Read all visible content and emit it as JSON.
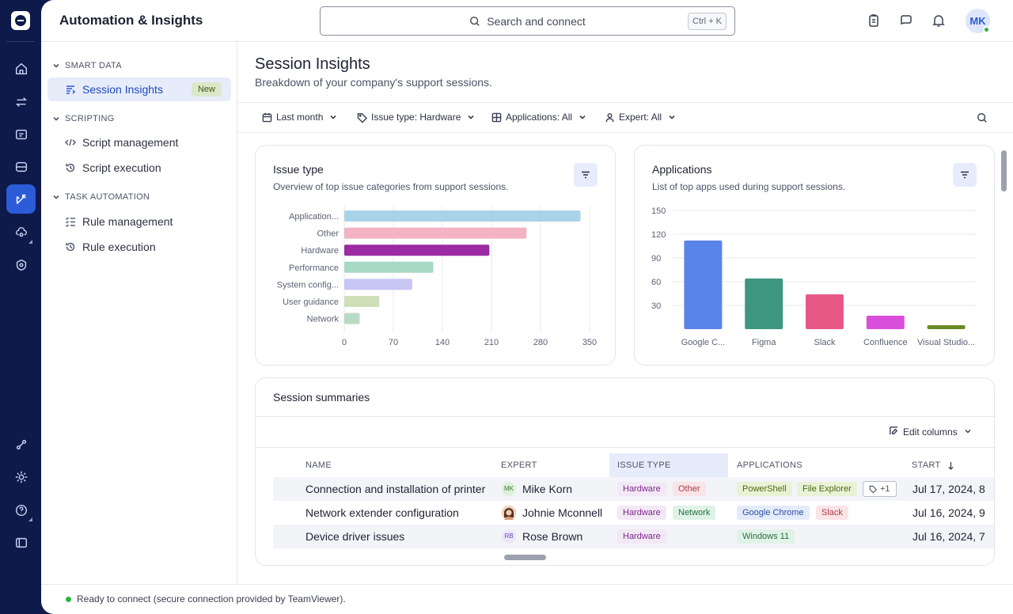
{
  "app": {
    "title": "Automation & Insights"
  },
  "search": {
    "placeholder": "Search and connect",
    "shortcut": "Ctrl + K"
  },
  "user": {
    "initials": "MK",
    "status_color": "#2fb344"
  },
  "rail": {
    "items": [
      "home-icon",
      "transfer-icon",
      "devices-icon",
      "sessions-icon",
      "automation-icon",
      "cloud-settings-icon",
      "security-icon",
      "integrations-icon",
      "settings-icon",
      "help-icon",
      "panel-icon"
    ],
    "active": "automation-icon"
  },
  "sidebar": {
    "smart_data": "SMART DATA",
    "session_insights": "Session Insights",
    "new_badge": "New",
    "scripting": "SCRIPTING",
    "script_management": "Script management",
    "script_execution": "Script execution",
    "task_automation": "TASK AUTOMATION",
    "rule_management": "Rule management",
    "rule_execution": "Rule execution"
  },
  "page": {
    "title": "Session Insights",
    "subtitle": "Breakdown of your company's support sessions."
  },
  "filters": {
    "period": "Last month",
    "issue_type": "Issue type: Hardware",
    "applications": "Applications: All",
    "expert": "Expert: All"
  },
  "issue_card": {
    "title": "Issue type",
    "subtitle": "Overview of top issue categories from support sessions."
  },
  "apps_card": {
    "title": "Applications",
    "subtitle": "List of top apps used during support sessions."
  },
  "chart_data": [
    {
      "type": "bar",
      "orientation": "horizontal",
      "categories": [
        "Application...",
        "Other",
        "Hardware",
        "Performance",
        "System config...",
        "User guidance",
        "Network"
      ],
      "values": [
        337,
        260,
        207,
        127,
        97,
        50,
        22
      ],
      "colors": [
        "#a9d3e8",
        "#f3b3c4",
        "#9b2aa3",
        "#a8d8c6",
        "#c8c6f4",
        "#cfdfb8",
        "#b8dbc6"
      ],
      "xticks": [
        "0",
        "70",
        "140",
        "210",
        "280",
        "350"
      ],
      "xlim": [
        0,
        350
      ],
      "grid": true
    },
    {
      "type": "bar",
      "categories": [
        "Google C...",
        "Figma",
        "Slack",
        "Confluence",
        "Visual Studio..."
      ],
      "values": [
        112,
        64,
        44,
        17,
        5
      ],
      "colors": [
        "#5b84ea",
        "#3f9680",
        "#e85887",
        "#d94fdc",
        "#6b8a24"
      ],
      "yticks": [
        "150",
        "120",
        "90",
        "60",
        "30"
      ],
      "ylim": [
        0,
        150
      ],
      "grid": true
    }
  ],
  "summaries": {
    "title": "Session summaries",
    "edit_columns": "Edit columns",
    "headers": {
      "name": "NAME",
      "expert": "EXPERT",
      "issue_type": "ISSUE TYPE",
      "applications": "APPLICATIONS",
      "start": "START"
    },
    "rows": [
      {
        "name": "Connection and installation of printer",
        "expert_initials": "MK",
        "expert": "Mike Korn",
        "issue1": "Hardware",
        "issue2": "Other",
        "app1": "PowerShell",
        "app2": "File Explorer",
        "app_more": "+1",
        "start": "Jul 17, 2024, 8"
      },
      {
        "name": "Network extender configuration",
        "expert_initials": "",
        "expert": "Johnie Mconnell",
        "issue1": "Hardware",
        "issue2": "Network",
        "app1": "Google Chrome",
        "app2": "Slack",
        "start": "Jul 16, 2024, 9"
      },
      {
        "name": "Device driver issues",
        "expert_initials": "RB",
        "expert": "Rose Brown",
        "issue1": "Hardware",
        "app1": "Windows 11",
        "start": "Jul 16, 2024, 7"
      }
    ]
  },
  "status": {
    "text": "Ready to connect (secure connection provided by TeamViewer)."
  }
}
